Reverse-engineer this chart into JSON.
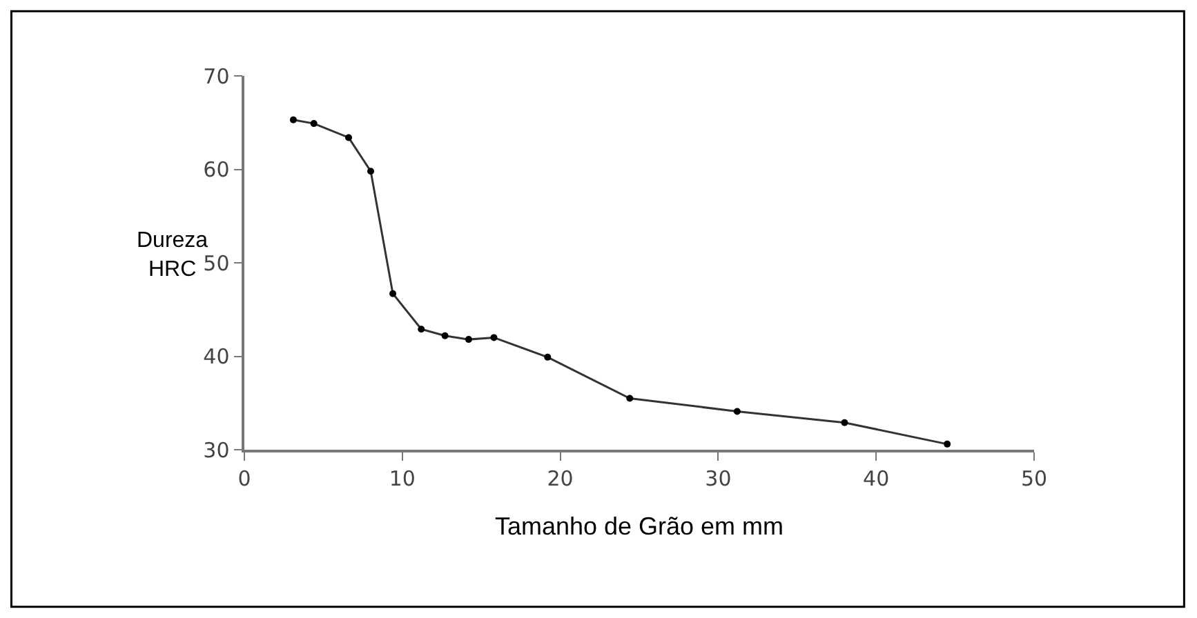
{
  "chart_data": {
    "type": "line",
    "xlabel": "Tamanho de Grão em mm",
    "ylabel": "Dureza\nHRC",
    "x": [
      3.1,
      4.4,
      6.6,
      8.0,
      9.4,
      11.2,
      12.7,
      14.2,
      15.8,
      19.2,
      24.4,
      31.2,
      38.0,
      44.5
    ],
    "series": [
      {
        "color": "#333333",
        "values": [
          65.3,
          64.9,
          63.4,
          59.8,
          46.7,
          42.9,
          42.2,
          41.8,
          42.0,
          39.9,
          35.5,
          34.1,
          32.9,
          30.6
        ]
      }
    ],
    "xlim": [
      0,
      50
    ],
    "xticks": [
      0,
      10,
      20,
      30,
      40,
      50
    ],
    "ylim": [
      30,
      70
    ],
    "yticks": [
      30,
      40,
      50,
      60,
      70
    ],
    "legend": false,
    "marker": "circle",
    "line_style": "solid"
  }
}
